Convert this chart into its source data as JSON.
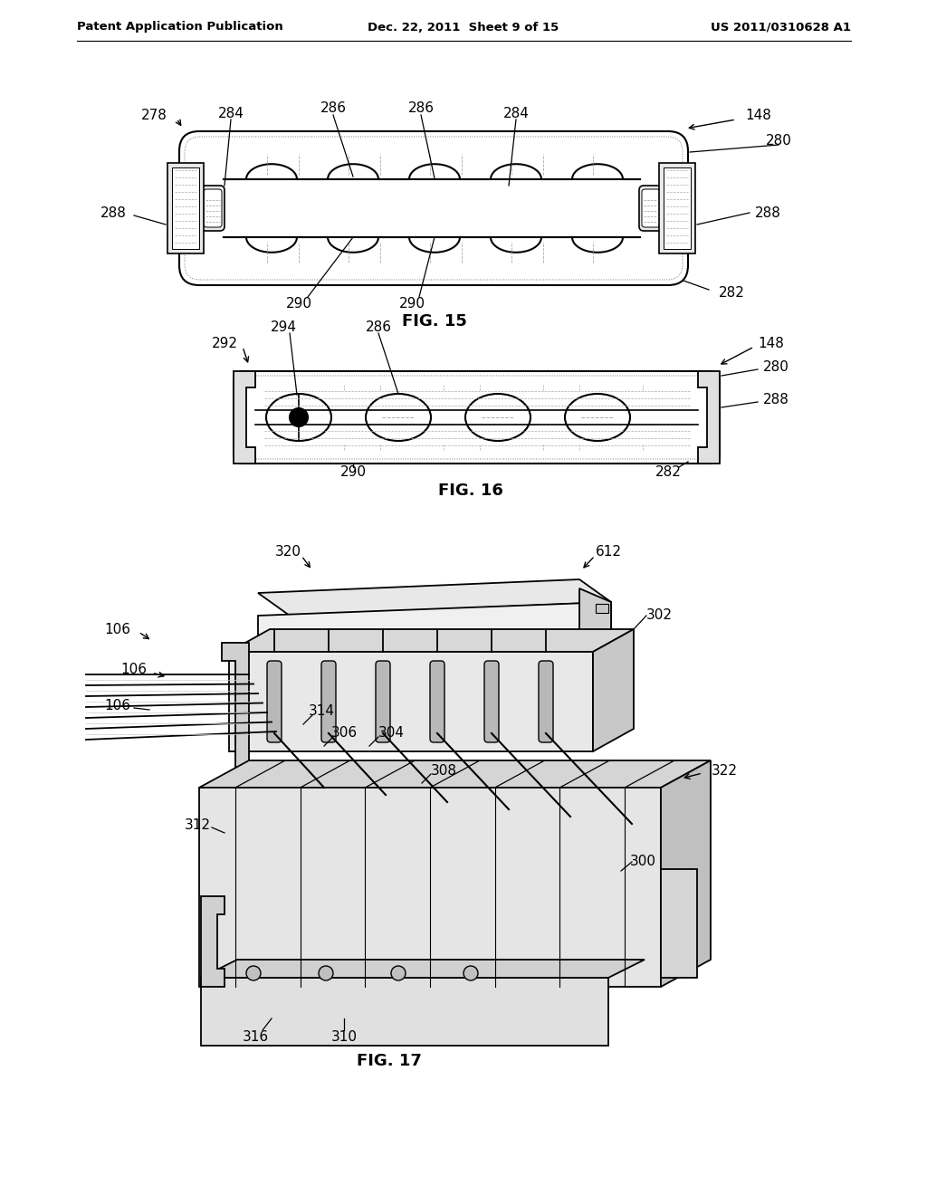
{
  "background_color": "#ffffff",
  "header_left": "Patent Application Publication",
  "header_center": "Dec. 22, 2011  Sheet 9 of 15",
  "header_right": "US 2011/0310628 A1",
  "fig15_label": "FIG. 15",
  "fig16_label": "FIG. 16",
  "fig17_label": "FIG. 17"
}
